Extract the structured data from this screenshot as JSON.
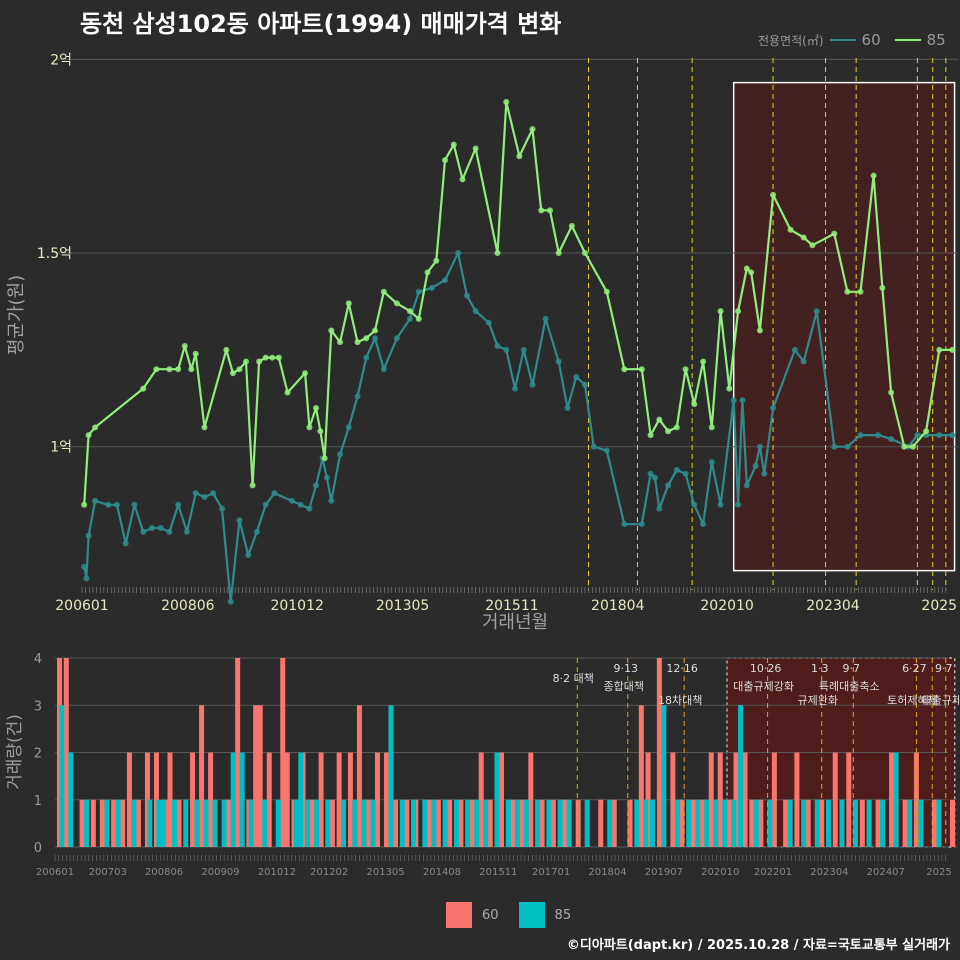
{
  "title": "동천 삼성102동 아파트(1994) 매매가격 변화",
  "legend": {
    "title": "전용면적(㎡)",
    "s60": "60",
    "s85": "85"
  },
  "colors": {
    "s60": "#2e8b8b",
    "s85": "#90ee7a",
    "bar60": "#f8766d",
    "bar85": "#00bfc4",
    "highlight": "#5a1a1a",
    "vline": "#e8d020",
    "grid": "#555555"
  },
  "footer": "©디아파트(dapt.kr) / 2025.10.28 / 자료=국토교통부 실거래가",
  "chart_data": [
    {
      "type": "line",
      "title": "동천 삼성102동 아파트(1994) 매매가격 변화",
      "xlabel": "거래년월",
      "ylabel": "평균가(원)",
      "xlim": [
        2006.0,
        2025.8
      ],
      "ylim": [
        0.63,
        2.05
      ],
      "yticks": [
        {
          "v": 1.0,
          "label": "1억"
        },
        {
          "v": 1.5,
          "label": "1.5억"
        },
        {
          "v": 2.0,
          "label": "2억"
        }
      ],
      "xticks": [
        {
          "v": 2006.0,
          "label": "200601"
        },
        {
          "v": 2008.42,
          "label": "200806"
        },
        {
          "v": 2010.92,
          "label": "201012"
        },
        {
          "v": 2013.33,
          "label": "201305"
        },
        {
          "v": 2015.83,
          "label": "201511"
        },
        {
          "v": 2018.25,
          "label": "201804"
        },
        {
          "v": 2020.75,
          "label": "202010"
        },
        {
          "v": 2023.17,
          "label": "202304"
        },
        {
          "v": 2025.6,
          "label": "2025"
        }
      ],
      "highlight": [
        2020.9,
        2025.95
      ],
      "vlines": [
        2017.58,
        2018.7,
        2019.95,
        2021.8,
        2023.0,
        2023.7,
        2025.1,
        2025.45,
        2025.75
      ],
      "series": [
        {
          "name": "60",
          "x": [
            2006.05,
            2006.1,
            2006.15,
            2006.3,
            2006.6,
            2006.8,
            2007.0,
            2007.2,
            2007.4,
            2007.6,
            2007.8,
            2008.0,
            2008.2,
            2008.4,
            2008.6,
            2008.8,
            2009.0,
            2009.2,
            2009.4,
            2009.6,
            2009.8,
            2010.0,
            2010.2,
            2010.4,
            2010.8,
            2011.0,
            2011.2,
            2011.35,
            2011.5,
            2011.6,
            2011.7,
            2011.9,
            2012.1,
            2012.3,
            2012.5,
            2012.7,
            2012.9,
            2013.2,
            2013.5,
            2013.7,
            2014.0,
            2014.3,
            2014.6,
            2014.8,
            2015.0,
            2015.3,
            2015.5,
            2015.7,
            2015.9,
            2016.1,
            2016.3,
            2016.6,
            2016.9,
            2017.1,
            2017.3,
            2017.5,
            2017.7,
            2018.0,
            2018.4,
            2018.8,
            2019.0,
            2019.1,
            2019.2,
            2019.4,
            2019.6,
            2019.8,
            2020.0,
            2020.2,
            2020.4,
            2020.6,
            2020.9,
            2021.0,
            2021.1,
            2021.2,
            2021.4,
            2021.5,
            2021.6,
            2021.8,
            2022.3,
            2022.5,
            2022.8,
            2023.2,
            2023.5,
            2023.8,
            2024.2,
            2024.5,
            2024.9,
            2025.1,
            2025.3,
            2025.6,
            2025.9
          ],
          "y": [
            0.69,
            0.66,
            0.77,
            0.86,
            0.85,
            0.85,
            0.75,
            0.85,
            0.78,
            0.79,
            0.79,
            0.78,
            0.85,
            0.78,
            0.88,
            0.87,
            0.88,
            0.84,
            0.6,
            0.81,
            0.72,
            0.78,
            0.85,
            0.88,
            0.86,
            0.85,
            0.84,
            0.9,
            0.97,
            0.92,
            0.86,
            0.98,
            1.05,
            1.13,
            1.23,
            1.28,
            1.2,
            1.28,
            1.33,
            1.4,
            1.41,
            1.43,
            1.5,
            1.39,
            1.35,
            1.32,
            1.26,
            1.25,
            1.15,
            1.25,
            1.16,
            1.33,
            1.22,
            1.1,
            1.18,
            1.16,
            1.0,
            0.99,
            0.8,
            0.8,
            0.93,
            0.92,
            0.84,
            0.9,
            0.94,
            0.93,
            0.85,
            0.8,
            0.96,
            0.85,
            1.12,
            0.85,
            1.12,
            0.9,
            0.95,
            1.0,
            0.93,
            1.1,
            1.25,
            1.22,
            1.35,
            1.0,
            1.0,
            1.03,
            1.03,
            1.02,
            1.0,
            1.03,
            1.03,
            1.03,
            1.03
          ]
        },
        {
          "name": "85",
          "x": [
            2006.05,
            2006.15,
            2006.3,
            2007.4,
            2007.7,
            2008.0,
            2008.2,
            2008.35,
            2008.5,
            2008.6,
            2008.8,
            2009.3,
            2009.45,
            2009.6,
            2009.75,
            2009.9,
            2010.05,
            2010.2,
            2010.35,
            2010.5,
            2010.7,
            2011.1,
            2011.2,
            2011.35,
            2011.45,
            2011.55,
            2011.7,
            2011.9,
            2012.1,
            2012.3,
            2012.5,
            2012.7,
            2012.9,
            2013.2,
            2013.5,
            2013.7,
            2013.9,
            2014.1,
            2014.3,
            2014.5,
            2014.7,
            2015.0,
            2015.5,
            2015.7,
            2016.0,
            2016.3,
            2016.5,
            2016.7,
            2016.9,
            2017.2,
            2017.5,
            2018.0,
            2018.4,
            2018.8,
            2019.0,
            2019.2,
            2019.4,
            2019.6,
            2019.8,
            2020.0,
            2020.2,
            2020.4,
            2020.6,
            2020.8,
            2021.0,
            2021.2,
            2021.3,
            2021.5,
            2021.8,
            2022.2,
            2022.5,
            2022.7,
            2023.2,
            2023.5,
            2023.8,
            2024.1,
            2024.3,
            2024.5,
            2024.8,
            2025.0,
            2025.3,
            2025.6,
            2025.9
          ],
          "y": [
            0.85,
            1.03,
            1.05,
            1.15,
            1.2,
            1.2,
            1.2,
            1.26,
            1.2,
            1.24,
            1.05,
            1.25,
            1.19,
            1.2,
            1.22,
            0.9,
            1.22,
            1.23,
            1.23,
            1.23,
            1.14,
            1.19,
            1.05,
            1.1,
            1.04,
            0.97,
            1.3,
            1.27,
            1.37,
            1.27,
            1.28,
            1.3,
            1.4,
            1.37,
            1.35,
            1.33,
            1.45,
            1.48,
            1.74,
            1.78,
            1.69,
            1.77,
            1.5,
            1.89,
            1.75,
            1.82,
            1.61,
            1.61,
            1.5,
            1.57,
            1.5,
            1.4,
            1.2,
            1.2,
            1.03,
            1.07,
            1.04,
            1.05,
            1.2,
            1.11,
            1.22,
            1.05,
            1.35,
            1.15,
            1.35,
            1.46,
            1.45,
            1.3,
            1.65,
            1.56,
            1.54,
            1.52,
            1.55,
            1.4,
            1.4,
            1.7,
            1.41,
            1.14,
            1.0,
            1.0,
            1.04,
            1.25,
            1.25
          ]
        }
      ]
    },
    {
      "type": "bar",
      "title": "",
      "xlabel": "",
      "ylabel": "거래량(건)",
      "ylim": [
        0,
        4
      ],
      "yticks": [
        0,
        1,
        2,
        3,
        4
      ],
      "xlim": [
        2006.0,
        2025.8
      ],
      "xticks": [
        {
          "v": 2006.0,
          "label": "200601"
        },
        {
          "v": 2007.17,
          "label": "200703"
        },
        {
          "v": 2008.42,
          "label": "200806"
        },
        {
          "v": 2009.67,
          "label": "200909"
        },
        {
          "v": 2010.92,
          "label": "201012"
        },
        {
          "v": 2012.08,
          "label": "201202"
        },
        {
          "v": 2013.33,
          "label": "201305"
        },
        {
          "v": 2014.58,
          "label": "201408"
        },
        {
          "v": 2015.83,
          "label": "201511"
        },
        {
          "v": 2017.0,
          "label": "201701"
        },
        {
          "v": 2018.25,
          "label": "201804"
        },
        {
          "v": 2019.5,
          "label": "201907"
        },
        {
          "v": 2020.75,
          "label": "202010"
        },
        {
          "v": 2021.92,
          "label": "202201"
        },
        {
          "v": 2023.17,
          "label": "202304"
        },
        {
          "v": 2024.42,
          "label": "202407"
        },
        {
          "v": 2025.6,
          "label": "2025"
        }
      ],
      "highlight": [
        2020.9,
        2025.95
      ],
      "policy_lines": [
        {
          "x": 2017.58,
          "date": "",
          "label": "8·2 대책"
        },
        {
          "x": 2018.7,
          "date": "9·13",
          "label": "종합대책"
        },
        {
          "x": 2019.95,
          "date": "12·16",
          "label": "18차대책"
        },
        {
          "x": 2021.8,
          "date": "10·26",
          "label": "대출규제강화"
        },
        {
          "x": 2023.0,
          "date": "1·3",
          "label": "규제완화"
        },
        {
          "x": 2023.7,
          "date": "9·7",
          "label": "특례대출축소"
        },
        {
          "x": 2025.1,
          "date": "6·27",
          "label": "토허제해제"
        },
        {
          "x": 2025.45,
          "date": "",
          "label": ""
        },
        {
          "x": 2025.75,
          "date": "9·7",
          "label": "대출규제"
        }
      ],
      "series": [
        {
          "name": "60",
          "x": [
            2006.1,
            2006.25,
            2006.6,
            2006.85,
            2007.05,
            2007.3,
            2007.5,
            2007.65,
            2007.85,
            2008.05,
            2008.25,
            2008.45,
            2008.55,
            2008.75,
            2009.05,
            2009.25,
            2009.45,
            2009.85,
            2010.05,
            2010.3,
            2010.45,
            2010.55,
            2010.75,
            2011.05,
            2011.15,
            2011.3,
            2011.5,
            2011.7,
            2011.9,
            2012.15,
            2012.3,
            2012.55,
            2012.75,
            2012.95,
            2013.15,
            2013.35,
            2013.55,
            2013.8,
            2014.0,
            2014.3,
            2014.5,
            2014.75,
            2015.0,
            2015.25,
            2015.45,
            2015.65,
            2015.9,
            2016.15,
            2016.35,
            2016.55,
            2016.8,
            2017.05,
            2017.3,
            2017.6,
            2018.1,
            2018.4,
            2018.75,
            2019.0,
            2019.15,
            2019.4,
            2019.7,
            2019.9,
            2020.15,
            2020.35,
            2020.55,
            2020.75,
            2020.95,
            2021.1,
            2021.3,
            2021.45,
            2021.65,
            2021.95,
            2022.2,
            2022.45,
            2022.7,
            2023.0,
            2023.3,
            2023.6,
            2023.9,
            2024.25,
            2024.55,
            2024.85,
            2025.1,
            2025.5,
            2025.9
          ],
          "y": [
            4,
            4,
            1,
            1,
            1,
            1,
            1,
            2,
            1,
            2,
            2,
            1,
            2,
            1,
            2,
            3,
            2,
            1,
            4,
            1,
            3,
            3,
            2,
            4,
            2,
            1,
            2,
            1,
            2,
            1,
            2,
            2,
            3,
            1,
            2,
            2,
            1,
            1,
            1,
            1,
            1,
            1,
            1,
            1,
            2,
            1,
            2,
            1,
            1,
            2,
            1,
            1,
            1,
            1,
            1,
            1,
            1,
            3,
            2,
            4,
            2,
            1,
            1,
            1,
            2,
            2,
            1,
            2,
            2,
            1,
            1,
            2,
            1,
            2,
            1,
            1,
            2,
            2,
            1,
            1,
            2,
            1,
            2,
            1,
            1
          ]
        },
        {
          "name": "85",
          "x": [
            2006.15,
            2006.35,
            2006.7,
            2007.15,
            2007.4,
            2007.75,
            2008.1,
            2008.3,
            2008.4,
            2008.65,
            2008.9,
            2009.15,
            2009.35,
            2009.55,
            2009.75,
            2009.95,
            2010.15,
            2010.35,
            2010.65,
            2010.95,
            2011.35,
            2011.45,
            2011.6,
            2011.8,
            2012.05,
            2012.4,
            2012.65,
            2012.85,
            2013.05,
            2013.45,
            2013.7,
            2013.95,
            2014.2,
            2014.4,
            2014.65,
            2014.9,
            2015.15,
            2015.35,
            2015.55,
            2015.8,
            2016.05,
            2016.25,
            2016.45,
            2016.7,
            2016.95,
            2017.2,
            2017.4,
            2017.8,
            2018.3,
            2018.9,
            2019.1,
            2019.25,
            2019.5,
            2019.8,
            2020.05,
            2020.25,
            2020.45,
            2020.65,
            2020.85,
            2021.05,
            2021.2,
            2021.55,
            2021.85,
            2022.3,
            2022.6,
            2022.9,
            2023.15,
            2023.45,
            2023.75,
            2024.05,
            2024.35,
            2024.65,
            2024.95,
            2025.2,
            2025.6
          ],
          "y": [
            3,
            2,
            1,
            1,
            1,
            1,
            1,
            1,
            1,
            1,
            1,
            1,
            1,
            1,
            1,
            2,
            2,
            1,
            1,
            1,
            1,
            2,
            1,
            1,
            1,
            1,
            1,
            1,
            1,
            3,
            1,
            1,
            1,
            1,
            1,
            1,
            1,
            1,
            1,
            2,
            1,
            1,
            1,
            1,
            1,
            1,
            1,
            1,
            1,
            1,
            1,
            1,
            3,
            1,
            1,
            1,
            1,
            1,
            1,
            1,
            3,
            1,
            1,
            1,
            1,
            1,
            1,
            1,
            1,
            1,
            1,
            2,
            1,
            1,
            1
          ]
        }
      ]
    }
  ]
}
